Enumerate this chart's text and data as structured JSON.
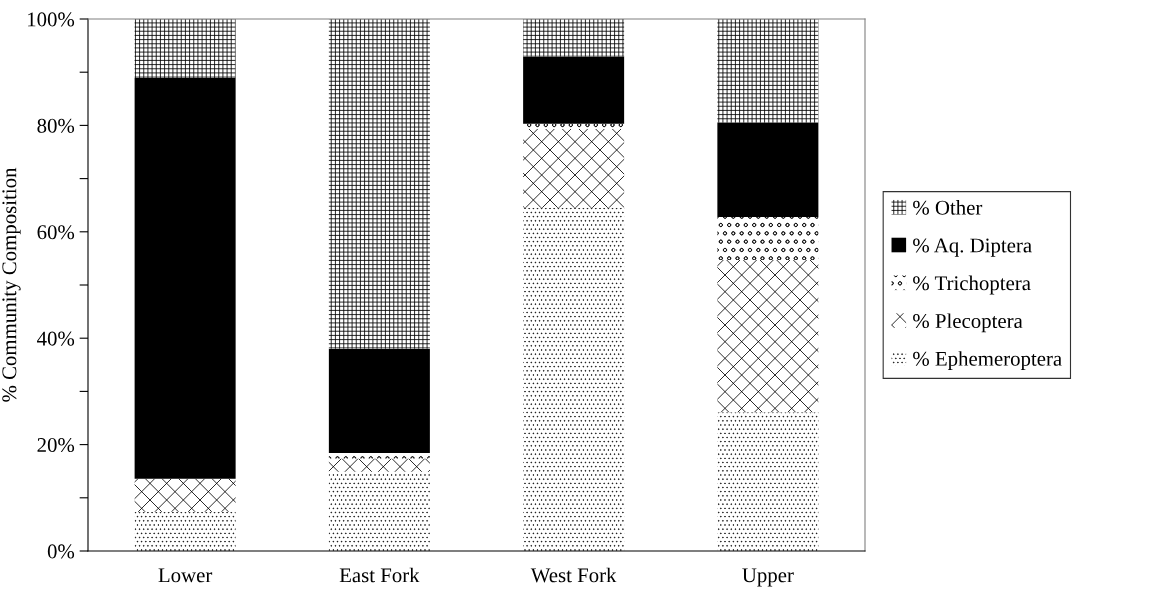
{
  "chart_data": {
    "type": "bar",
    "stacked": true,
    "ylabel": "% Community Composition",
    "categories": [
      "Lower",
      "East Fork",
      "West Fork",
      "Upper"
    ],
    "series": [
      {
        "name": "% Ephemeroptera",
        "color": "#ffffff",
        "values": [
          7.4,
          14.9,
          64.5,
          26.1
        ]
      },
      {
        "name": "% Plecoptera",
        "color": "#ffffff",
        "values": [
          6.2,
          2.5,
          14.8,
          28.6
        ]
      },
      {
        "name": "% Trichoptera",
        "color": "#ffffff",
        "values": [
          0,
          1.0,
          1.0,
          8.1
        ]
      },
      {
        "name": "% Aq. Diptera",
        "color": "#000000",
        "values": [
          75.3,
          19.6,
          12.6,
          17.7
        ]
      },
      {
        "name": "% Other",
        "color": "#ffffff",
        "values": [
          11.1,
          62.0,
          7.1,
          19.5
        ]
      }
    ],
    "ylim": [
      0,
      100
    ],
    "yticks": [
      {
        "value": 0,
        "label": "0%"
      },
      {
        "value": 10,
        "label": null
      },
      {
        "value": 20,
        "label": "20%"
      },
      {
        "value": 30,
        "label": null
      },
      {
        "value": 40,
        "label": "40%"
      },
      {
        "value": 50,
        "label": null
      },
      {
        "value": 60,
        "label": "60%"
      },
      {
        "value": 70,
        "label": null
      },
      {
        "value": 80,
        "label": "80%"
      },
      {
        "value": 90,
        "label": null
      },
      {
        "value": 100,
        "label": "100%"
      }
    ],
    "grid": false,
    "legend": "right"
  }
}
